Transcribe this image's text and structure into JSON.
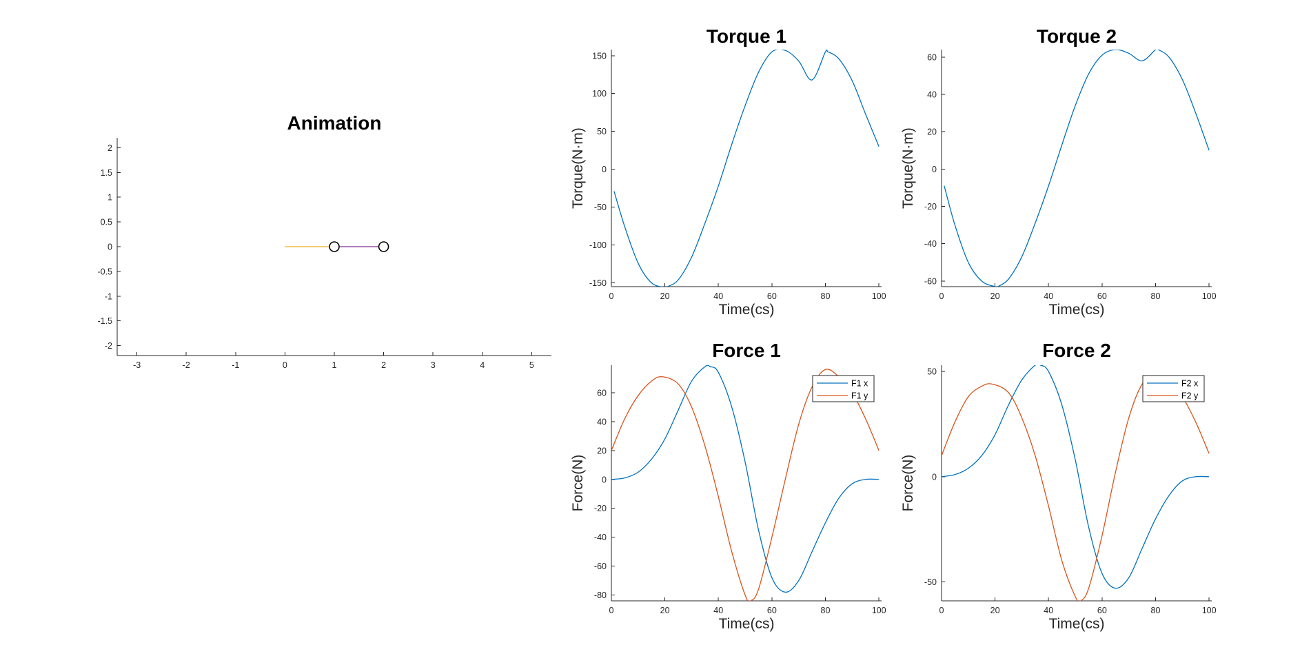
{
  "colors": {
    "blue": "#0072BD",
    "orange": "#D95319",
    "yellow": "#EDB120",
    "purple": "#7E2F8E",
    "axis": "#262626"
  },
  "chart_data": [
    {
      "id": "animation",
      "type": "line",
      "title": "Animation",
      "xlabel": "",
      "ylabel": "",
      "xlim": [
        -3.4,
        5.4
      ],
      "ylim": [
        -2.2,
        2.2
      ],
      "xticks": [
        -3,
        -2,
        -1,
        0,
        1,
        2,
        3,
        4,
        5
      ],
      "yticks": [
        -2,
        -1.5,
        -1,
        -0.5,
        0,
        0.5,
        1,
        1.5,
        2
      ],
      "grid": false,
      "links": [
        {
          "x": [
            0,
            1
          ],
          "y": [
            0,
            0
          ],
          "color": "#EDB120"
        },
        {
          "x": [
            1,
            2
          ],
          "y": [
            0,
            0
          ],
          "color": "#7E2F8E"
        }
      ],
      "joints": [
        {
          "x": 1,
          "y": 0
        },
        {
          "x": 2,
          "y": 0
        }
      ]
    },
    {
      "id": "torque1",
      "type": "line",
      "title": "Torque 1",
      "xlabel": "Time(cs)",
      "ylabel": "Torque(N·m)",
      "xlim": [
        0,
        101
      ],
      "ylim": [
        -155,
        158
      ],
      "xticks": [
        0,
        20,
        40,
        60,
        80,
        100
      ],
      "yticks": [
        -150,
        -100,
        -50,
        0,
        50,
        100,
        150
      ],
      "grid": false,
      "series": [
        {
          "color": "#0072BD",
          "x": [
            1,
            5,
            10,
            15,
            20,
            21,
            25,
            30,
            35,
            40,
            45,
            50,
            55,
            60,
            65,
            70,
            75,
            80,
            81,
            85,
            90,
            95,
            100
          ],
          "y": [
            -29,
            -76,
            -124,
            -150,
            -156,
            -155,
            -146,
            -116,
            -71,
            -22,
            33,
            84,
            128,
            155,
            157,
            143,
            118,
            155,
            155,
            146,
            117,
            73,
            30
          ]
        }
      ]
    },
    {
      "id": "torque2",
      "type": "line",
      "title": "Torque 2",
      "xlabel": "Time(cs)",
      "ylabel": "Torque(N·m)",
      "xlim": [
        0,
        101
      ],
      "ylim": [
        -63,
        64
      ],
      "xticks": [
        0,
        20,
        40,
        60,
        80,
        100
      ],
      "yticks": [
        -60,
        -40,
        -20,
        0,
        20,
        40,
        60
      ],
      "grid": false,
      "series": [
        {
          "color": "#0072BD",
          "x": [
            1,
            5,
            10,
            15,
            20,
            21,
            25,
            30,
            35,
            40,
            45,
            50,
            55,
            60,
            65,
            70,
            75,
            80,
            81,
            85,
            90,
            95,
            100
          ],
          "y": [
            -9,
            -30,
            -50,
            -60,
            -63,
            -63,
            -59,
            -47,
            -29,
            -9,
            13,
            34,
            51,
            61,
            64,
            62,
            58,
            64,
            64,
            60,
            48,
            30,
            10
          ]
        }
      ]
    },
    {
      "id": "force1",
      "type": "line",
      "title": "Force 1",
      "xlabel": "Time(cs)",
      "ylabel": "Force(N)",
      "xlim": [
        0,
        101
      ],
      "ylim": [
        -84,
        79
      ],
      "xticks": [
        0,
        20,
        40,
        60,
        80,
        100
      ],
      "yticks": [
        -80,
        -60,
        -40,
        -20,
        0,
        20,
        40,
        60
      ],
      "grid": false,
      "legend": "top-right",
      "series": [
        {
          "name": "F1 x",
          "color": "#0072BD",
          "x": [
            0,
            5,
            10,
            15,
            20,
            25,
            30,
            35,
            37,
            40,
            45,
            50,
            55,
            60,
            65,
            70,
            75,
            80,
            85,
            90,
            95,
            100
          ],
          "y": [
            0,
            1,
            5,
            14,
            28,
            48,
            68,
            78,
            78,
            74,
            50,
            12,
            -35,
            -68,
            -78,
            -70,
            -50,
            -30,
            -13,
            -3,
            0,
            0
          ]
        },
        {
          "name": "F1 y",
          "color": "#D95319",
          "x": [
            0,
            5,
            10,
            15,
            19,
            25,
            30,
            35,
            40,
            45,
            50,
            52,
            55,
            60,
            65,
            70,
            75,
            80,
            85,
            90,
            95,
            100
          ],
          "y": [
            20,
            42,
            58,
            68,
            71,
            66,
            50,
            23,
            -12,
            -50,
            -80,
            -84,
            -76,
            -40,
            0,
            38,
            64,
            76,
            71,
            60,
            42,
            20
          ]
        }
      ]
    },
    {
      "id": "force2",
      "type": "line",
      "title": "Force 2",
      "xlabel": "Time(cs)",
      "ylabel": "Force(N)",
      "xlim": [
        0,
        101
      ],
      "ylim": [
        -59,
        53
      ],
      "xticks": [
        0,
        20,
        40,
        60,
        80,
        100
      ],
      "yticks": [
        -50,
        0,
        50
      ],
      "grid": false,
      "legend": "top-right",
      "series": [
        {
          "name": "F2 x",
          "color": "#0072BD",
          "x": [
            0,
            5,
            10,
            15,
            20,
            25,
            30,
            35,
            37,
            40,
            45,
            50,
            55,
            60,
            65,
            70,
            75,
            80,
            85,
            90,
            95,
            100
          ],
          "y": [
            0,
            1,
            4,
            10,
            20,
            34,
            46,
            53,
            53,
            50,
            34,
            8,
            -24,
            -46,
            -53,
            -48,
            -34,
            -20,
            -9,
            -2,
            0,
            0
          ]
        },
        {
          "name": "F2 y",
          "color": "#D95319",
          "x": [
            0,
            5,
            10,
            15,
            19,
            25,
            30,
            35,
            40,
            45,
            50,
            52,
            55,
            60,
            65,
            70,
            75,
            80,
            85,
            90,
            95,
            100
          ],
          "y": [
            10,
            26,
            38,
            43,
            44,
            40,
            28,
            10,
            -14,
            -40,
            -57,
            -59,
            -53,
            -28,
            2,
            28,
            44,
            48,
            46,
            38,
            26,
            11
          ]
        }
      ]
    }
  ]
}
